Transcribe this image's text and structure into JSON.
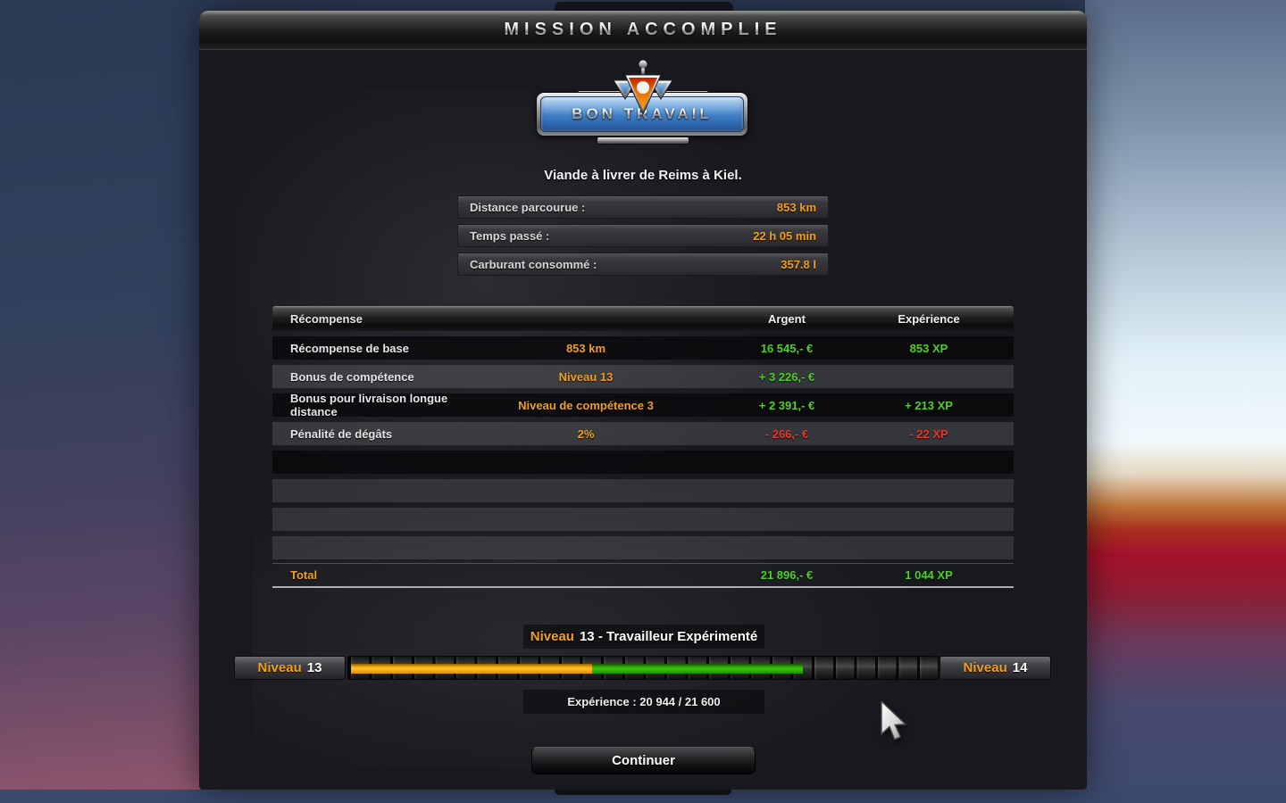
{
  "header": {
    "title": "MISSION ACCOMPLIE"
  },
  "badge": {
    "label": "BON TRAVAIL",
    "logo_icon": "wgcc-triangles-logo"
  },
  "subtitle": "Viande à livrer de Reims à Kiel.",
  "stats": [
    {
      "label": "Distance parcourue :",
      "value": "853 km"
    },
    {
      "label": "Temps passé :",
      "value": "22 h 05 min"
    },
    {
      "label": "Carburant consommé :",
      "value": "357.8 l"
    }
  ],
  "table": {
    "headers": {
      "reward": "Récompense",
      "money": "Argent",
      "xp": "Expérience"
    },
    "rows": [
      {
        "label": "Récompense de base",
        "detail": "853 km",
        "money": "16 545,- €",
        "xp": "853 XP"
      },
      {
        "label": "Bonus de compétence",
        "detail": "Niveau 13",
        "money": "+ 3 226,- €",
        "xp": ""
      },
      {
        "label": "Bonus pour livraison longue distance",
        "detail": "Niveau de compétence 3",
        "money": "+ 2 391,- €",
        "xp": "+ 213 XP"
      },
      {
        "label": "Pénalité de dégâts",
        "detail": "2%",
        "money": "- 266,- €",
        "xp": "- 22 XP"
      }
    ],
    "total": {
      "label": "Total",
      "money": "21 896,- €",
      "xp": "1 044 XP"
    }
  },
  "level": {
    "title_prefix": "Niveau",
    "title_rest": "13 - Travailleur Expérimenté",
    "current_label": "Niveau",
    "current_number": "13",
    "next_label": "Niveau",
    "next_number": "14",
    "xp_text": "Expérience : 20 944 / 21 600",
    "progress": {
      "orange_pct": 40.9,
      "green_pct": 35.8
    }
  },
  "continue_button": "Continuer",
  "colors": {
    "accent_orange": "#f0a01c",
    "positive_green": "#4cd41e",
    "negative_red": "#e8382e",
    "plaque_blue": "#3e7ec6",
    "xp_bar_orange": "#f5a800",
    "xp_bar_green": "#2da404"
  }
}
